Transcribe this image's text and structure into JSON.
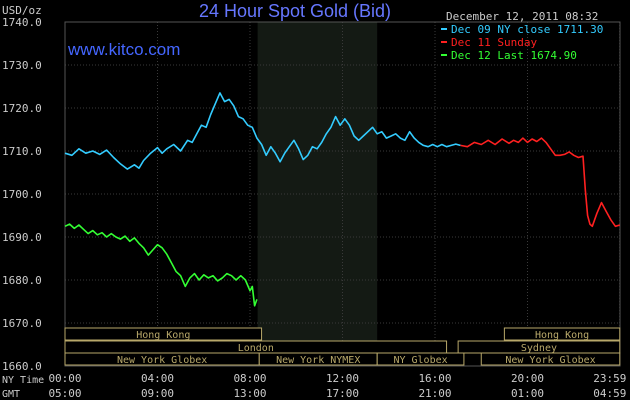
{
  "header": {
    "title": "24 Hour Spot Gold (Bid)",
    "unit": "USD/oz",
    "url": "www.kitco.com",
    "timestamp": "December 12, 2011 08:32"
  },
  "legend": [
    {
      "text": "Dec 09 NY close 1711.30",
      "color": "#33CCFF"
    },
    {
      "text": "Dec 11 Sunday",
      "color": "#FF2020"
    },
    {
      "text": "Dec 12 Last 1674.90",
      "color": "#33FF33"
    }
  ],
  "time_labels": {
    "ny_time_label": "NY Time",
    "gmt_label": "GMT",
    "ny_times": [
      "00:00",
      "04:00",
      "08:00",
      "12:00",
      "16:00",
      "20:00",
      "23:59"
    ],
    "gmt_times": [
      "05:00",
      "09:00",
      "13:00",
      "17:00",
      "21:00",
      "01:00",
      "04:59"
    ]
  },
  "markets": [
    {
      "name": "Hong Kong",
      "start": 0,
      "end": 8.5
    },
    {
      "name": "Hong Kong",
      "start": 19,
      "end": 23.99
    },
    {
      "name": "London",
      "start": 0,
      "end": 16.5
    },
    {
      "name": "Sydney",
      "start": 17,
      "end": 23.99
    },
    {
      "name": "New York Globex",
      "start": 0,
      "end": 8.4
    },
    {
      "name": "New York NYMEX",
      "start": 8.4,
      "end": 13.5
    },
    {
      "name": "NY Globex",
      "start": 13.5,
      "end": 17.25
    },
    {
      "name": "New York Globex",
      "start": 18,
      "end": 23.99
    }
  ],
  "colors": {
    "background": "#000000",
    "grid": "#3A3A3A",
    "nymex_shade": "#141A14",
    "title": "#6677FF",
    "url": "#4466FF",
    "text": "#CCCCCC",
    "market_box": "#B8A86A"
  },
  "chart_data": {
    "type": "line",
    "title": "24 Hour Spot Gold (Bid)",
    "ylabel": "USD/oz",
    "ylim": [
      1660,
      1740
    ],
    "yticks": [
      "1660.0",
      "1670.0",
      "1680.0",
      "1690.0",
      "1700.0",
      "1710.0",
      "1720.0",
      "1730.0",
      "1740.0"
    ],
    "xlim_hours": [
      0,
      24
    ],
    "grid": true,
    "legend_position": "top-right",
    "series": [
      {
        "name": "Dec 09 NY close 1711.30",
        "color": "#33CCFF",
        "x": [
          0,
          0.3,
          0.6,
          0.9,
          1.2,
          1.5,
          1.8,
          2.1,
          2.4,
          2.7,
          3.0,
          3.2,
          3.4,
          3.7,
          4.0,
          4.2,
          4.4,
          4.7,
          5.0,
          5.3,
          5.5,
          5.7,
          5.9,
          6.1,
          6.3,
          6.5,
          6.7,
          6.9,
          7.1,
          7.3,
          7.5,
          7.7,
          7.9,
          8.1,
          8.3,
          8.5,
          8.7,
          8.9,
          9.1,
          9.3,
          9.5,
          9.7,
          9.9,
          10.1,
          10.3,
          10.5,
          10.7,
          10.9,
          11.1,
          11.3,
          11.5,
          11.7,
          11.9,
          12.1,
          12.3,
          12.5,
          12.7,
          12.9,
          13.1,
          13.3,
          13.5,
          13.7,
          13.9,
          14.1,
          14.3,
          14.5,
          14.7,
          14.9,
          15.1,
          15.3,
          15.5,
          15.7,
          15.9,
          16.1,
          16.3,
          16.5,
          16.7,
          16.9,
          17.1
        ],
        "values": [
          1709.5,
          1709.0,
          1710.5,
          1709.5,
          1710.0,
          1709.2,
          1710.2,
          1708.5,
          1707.0,
          1705.8,
          1706.8,
          1706.0,
          1707.8,
          1709.5,
          1710.8,
          1709.5,
          1710.5,
          1711.5,
          1710.0,
          1712.5,
          1712.0,
          1714.0,
          1716.0,
          1715.5,
          1718.5,
          1721.0,
          1723.5,
          1721.5,
          1722.0,
          1720.5,
          1718.0,
          1717.5,
          1716.0,
          1715.5,
          1713.0,
          1711.5,
          1709.0,
          1711.0,
          1709.5,
          1707.5,
          1709.5,
          1711.0,
          1712.5,
          1710.5,
          1708.0,
          1709.0,
          1711.0,
          1710.5,
          1712.0,
          1714.0,
          1715.5,
          1718.0,
          1716.0,
          1717.5,
          1716.0,
          1713.5,
          1712.5,
          1713.5,
          1714.5,
          1715.5,
          1714.0,
          1714.5,
          1713.0,
          1713.5,
          1714.0,
          1713.0,
          1712.5,
          1714.5,
          1713.0,
          1712.0,
          1711.3,
          1711.0,
          1711.5,
          1711.0,
          1711.5,
          1711.0,
          1711.3,
          1711.6,
          1711.3
        ]
      },
      {
        "name": "Dec 11 Sunday",
        "color": "#FF2020",
        "x": [
          17.1,
          17.4,
          17.7,
          18.0,
          18.3,
          18.6,
          18.9,
          19.2,
          19.4,
          19.6,
          19.8,
          20.0,
          20.2,
          20.4,
          20.6,
          20.8,
          21.0,
          21.2,
          21.4,
          21.6,
          21.8,
          22.0,
          22.2,
          22.4,
          22.5,
          22.6,
          22.7,
          22.8,
          22.9,
          23.0,
          23.2,
          23.4,
          23.6,
          23.8,
          23.99
        ],
        "values": [
          1711.3,
          1711.0,
          1712.0,
          1711.5,
          1712.5,
          1711.5,
          1712.8,
          1711.8,
          1712.5,
          1712.0,
          1713.0,
          1712.0,
          1712.8,
          1712.2,
          1713.0,
          1712.0,
          1710.5,
          1709.0,
          1709.0,
          1709.2,
          1709.8,
          1709.0,
          1708.5,
          1708.8,
          1701.0,
          1695.0,
          1693.0,
          1692.5,
          1694.0,
          1695.5,
          1698.0,
          1696.0,
          1694.0,
          1692.5,
          1692.8
        ]
      },
      {
        "name": "Dec 12 Last 1674.90",
        "color": "#33FF33",
        "x": [
          0,
          0.2,
          0.4,
          0.6,
          0.8,
          1.0,
          1.2,
          1.4,
          1.6,
          1.8,
          2.0,
          2.2,
          2.4,
          2.6,
          2.8,
          3.0,
          3.2,
          3.4,
          3.6,
          3.8,
          4.0,
          4.2,
          4.4,
          4.6,
          4.8,
          5.0,
          5.2,
          5.4,
          5.6,
          5.8,
          6.0,
          6.2,
          6.4,
          6.6,
          6.8,
          7.0,
          7.2,
          7.4,
          7.6,
          7.8,
          8.0,
          8.1,
          8.2,
          8.3
        ],
        "values": [
          1692.5,
          1693.0,
          1692.0,
          1692.8,
          1691.8,
          1690.8,
          1691.5,
          1690.5,
          1691.0,
          1690.0,
          1690.8,
          1690.0,
          1689.5,
          1690.2,
          1689.0,
          1689.8,
          1688.5,
          1687.5,
          1685.8,
          1687.0,
          1688.2,
          1687.5,
          1686.0,
          1684.0,
          1682.0,
          1681.0,
          1678.5,
          1680.5,
          1681.5,
          1680.0,
          1681.2,
          1680.5,
          1681.0,
          1679.8,
          1680.5,
          1681.5,
          1681.0,
          1680.0,
          1681.0,
          1680.0,
          1677.5,
          1678.5,
          1674.0,
          1675.5
        ]
      }
    ]
  }
}
